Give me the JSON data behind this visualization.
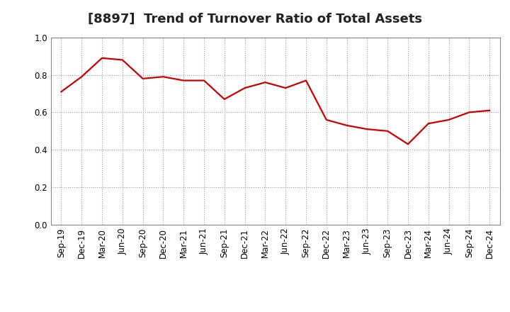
{
  "title": "[8897]  Trend of Turnover Ratio of Total Assets",
  "x_labels": [
    "Sep-19",
    "Dec-19",
    "Mar-20",
    "Jun-20",
    "Sep-20",
    "Dec-20",
    "Mar-21",
    "Jun-21",
    "Sep-21",
    "Dec-21",
    "Mar-22",
    "Jun-22",
    "Sep-22",
    "Dec-22",
    "Mar-23",
    "Jun-23",
    "Sep-23",
    "Dec-23",
    "Mar-24",
    "Jun-24",
    "Sep-24",
    "Dec-24"
  ],
  "y_values": [
    0.71,
    0.79,
    0.89,
    0.88,
    0.78,
    0.79,
    0.77,
    0.77,
    0.67,
    0.73,
    0.76,
    0.73,
    0.77,
    0.56,
    0.53,
    0.51,
    0.5,
    0.43,
    0.54,
    0.56,
    0.6,
    0.61
  ],
  "line_color": "#cc0000",
  "line_width": 1.6,
  "ylim": [
    0.0,
    1.0
  ],
  "yticks": [
    0.0,
    0.2,
    0.4,
    0.6,
    0.8,
    1.0
  ],
  "grid_color": "#999999",
  "grid_linestyle": ":",
  "background_color": "#ffffff",
  "title_fontsize": 13,
  "tick_fontsize": 8.5
}
